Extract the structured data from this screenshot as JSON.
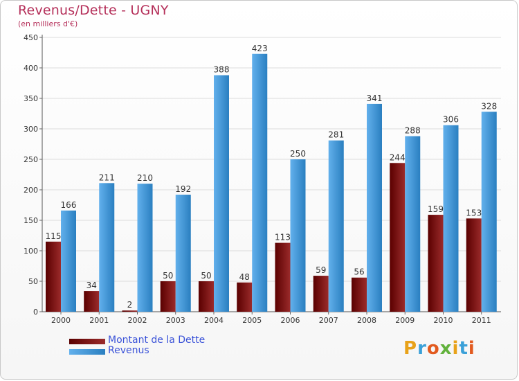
{
  "chart": {
    "title": "Revenus/Dette - UGNY",
    "subtitle": "(en milliers d'€)"
  },
  "logo": {
    "text": "Proxiti"
  },
  "colors": {
    "dette_dark": "#5a0000",
    "dette_light": "#9b2b2b",
    "revenus_dark": "#2a7fc0",
    "revenus_light": "#62b0ec",
    "title": "#b5305a",
    "legend_text": "#3a52d8"
  },
  "chart_data": {
    "type": "bar",
    "title": "Revenus/Dette - UGNY",
    "subtitle": "(en milliers d'€)",
    "categories": [
      "2000",
      "2001",
      "2002",
      "2003",
      "2004",
      "2005",
      "2006",
      "2007",
      "2008",
      "2009",
      "2010",
      "2011"
    ],
    "series": [
      {
        "name": "Montant de la Dette",
        "values": [
          115,
          34,
          2,
          50,
          50,
          48,
          113,
          59,
          56,
          244,
          159,
          153
        ]
      },
      {
        "name": "Revenus",
        "values": [
          166,
          211,
          210,
          192,
          388,
          423,
          250,
          281,
          341,
          288,
          306,
          328
        ]
      }
    ],
    "ylim": [
      0,
      450
    ],
    "yticks": [
      0,
      50,
      100,
      150,
      200,
      250,
      300,
      350,
      400,
      450
    ],
    "grid": true,
    "legend": "bottom-left"
  }
}
